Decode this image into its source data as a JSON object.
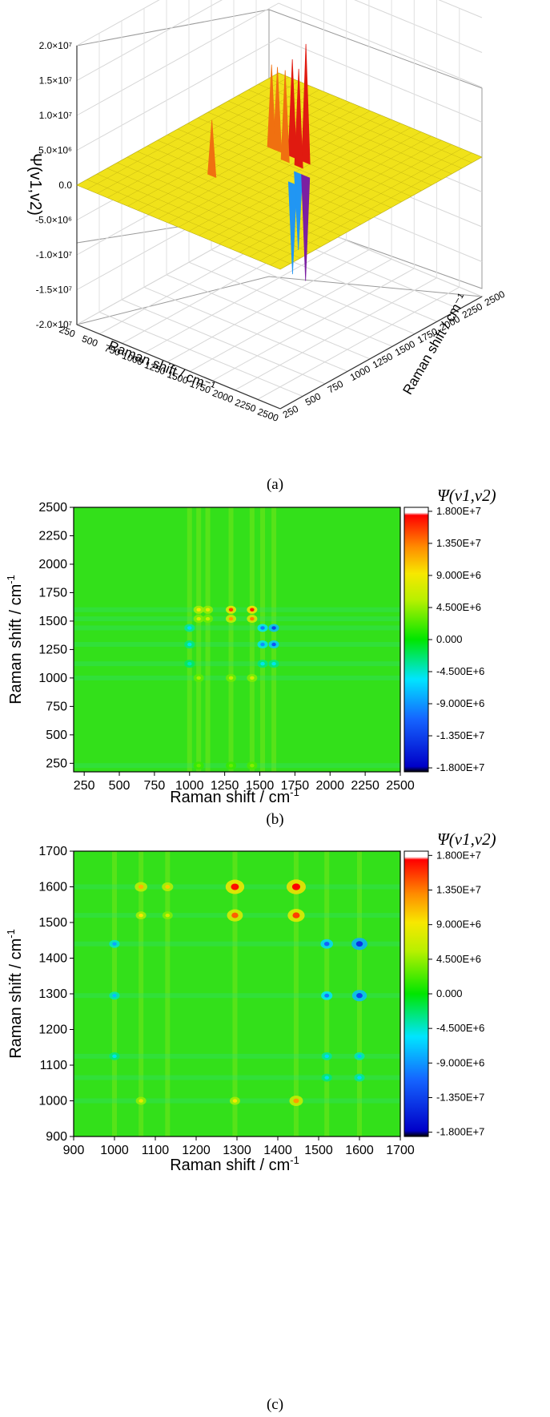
{
  "panels": {
    "a": {
      "caption": "(a)",
      "z_axis_label": "Ψ(v1,v2)",
      "x_axis_label": "Raman shift / cm⁻¹",
      "y_axis_label": "Raman shift / cm⁻¹",
      "z_ticks": [
        "2.0×10⁷",
        "1.5×10⁷",
        "1.0×10⁷",
        "5.0×10⁶",
        "0.0",
        "-5.0×10⁶",
        "-1.0×10⁷",
        "-1.5×10⁷",
        "-2.0×10⁷"
      ],
      "x_ticks": [
        "250",
        "500",
        "750",
        "1000",
        "1250",
        "1500",
        "1750",
        "2000",
        "2250",
        "2500"
      ],
      "y_ticks": [
        "250",
        "500",
        "750",
        "1000",
        "1250",
        "1500",
        "1750",
        "2000",
        "2250",
        "2500"
      ]
    },
    "b": {
      "caption": "(b)",
      "colorbar_title": "Ψ(v1,v2)",
      "x_axis_label": "Raman shift / cm",
      "y_axis_label": "Raman shift / cm",
      "axis_exponent": "-1",
      "x_ticks": [
        "250",
        "500",
        "750",
        "1000",
        "1250",
        "1500",
        "1750",
        "2000",
        "2250",
        "2500"
      ],
      "y_ticks": [
        "2500",
        "2250",
        "2000",
        "1750",
        "1500",
        "1250",
        "1000",
        "750",
        "500",
        "250"
      ],
      "colorbar_ticks": [
        "1.800E+7",
        "1.350E+7",
        "9.000E+6",
        "4.500E+6",
        "0.000",
        "-4.500E+6",
        "-9.000E+6",
        "-1.350E+7",
        "-1.800E+7"
      ]
    },
    "c": {
      "caption": "(c)",
      "colorbar_title": "Ψ(v1,v2)",
      "x_axis_label": "Raman shift / cm",
      "y_axis_label": "Raman shift / cm",
      "axis_exponent": "-1",
      "x_ticks": [
        "900",
        "1000",
        "1100",
        "1200",
        "1300",
        "1400",
        "1500",
        "1600",
        "1700"
      ],
      "y_ticks": [
        "1700",
        "1600",
        "1500",
        "1400",
        "1300",
        "1200",
        "1100",
        "1000",
        "900"
      ],
      "colorbar_ticks": [
        "1.800E+7",
        "1.350E+7",
        "9.000E+6",
        "4.500E+6",
        "0.000",
        "-4.500E+6",
        "-9.000E+6",
        "-1.350E+7",
        "-1.800E+7"
      ]
    }
  },
  "chart_data": [
    {
      "type": "surface3d",
      "panel": "a",
      "x_range": [
        250,
        2500
      ],
      "y_range": [
        250,
        2500
      ],
      "z_range": [
        -20000000,
        20000000
      ],
      "colormap": [
        "#7b1fa2",
        "#2196f3",
        "#69e070",
        "#f4f000",
        "#ff8c00",
        "#e01010"
      ],
      "peaks": [
        {
          "x": 1065,
          "y": 1600,
          "z": 12000000
        },
        {
          "x": 1130,
          "y": 1600,
          "z": 12000000
        },
        {
          "x": 1295,
          "y": 1600,
          "z": 14000000
        },
        {
          "x": 1445,
          "y": 1600,
          "z": 17000000
        },
        {
          "x": 1295,
          "y": 1520,
          "z": 13000000
        },
        {
          "x": 1445,
          "y": 1520,
          "z": 14000000
        },
        {
          "x": 1000,
          "y": 1000,
          "z": 8000000
        },
        {
          "x": 1520,
          "y": 1440,
          "z": -11000000
        },
        {
          "x": 1600,
          "y": 1440,
          "z": -15000000
        },
        {
          "x": 1600,
          "y": 1295,
          "z": -13000000
        }
      ]
    },
    {
      "type": "heatmap",
      "panel": "b",
      "xlim": [
        175,
        2500
      ],
      "ylim": [
        175,
        2500
      ],
      "zlim": [
        -18000000,
        18000000
      ],
      "grid": false,
      "colormap": [
        "#000000",
        "#1010ff",
        "#00e6ff",
        "#00e600",
        "#f0f000",
        "#ff7000",
        "#ff0000",
        "#ffffff"
      ],
      "peaks": [
        {
          "x": 1065,
          "y": 1600,
          "z": 9000000
        },
        {
          "x": 1130,
          "y": 1600,
          "z": 8000000
        },
        {
          "x": 1295,
          "y": 1600,
          "z": 15000000
        },
        {
          "x": 1445,
          "y": 1600,
          "z": 16000000
        },
        {
          "x": 1065,
          "y": 1520,
          "z": 7000000
        },
        {
          "x": 1130,
          "y": 1520,
          "z": 6000000
        },
        {
          "x": 1295,
          "y": 1520,
          "z": 12000000
        },
        {
          "x": 1445,
          "y": 1520,
          "z": 13000000
        },
        {
          "x": 1000,
          "y": 1440,
          "z": -6000000
        },
        {
          "x": 1520,
          "y": 1440,
          "z": -10000000
        },
        {
          "x": 1600,
          "y": 1440,
          "z": -13000000
        },
        {
          "x": 1000,
          "y": 1295,
          "z": -5000000
        },
        {
          "x": 1520,
          "y": 1295,
          "z": -9000000
        },
        {
          "x": 1600,
          "y": 1295,
          "z": -12000000
        },
        {
          "x": 1065,
          "y": 1000,
          "z": 5000000
        },
        {
          "x": 1295,
          "y": 1000,
          "z": 6000000
        },
        {
          "x": 1445,
          "y": 1000,
          "z": 7000000
        },
        {
          "x": 1000,
          "y": 1125,
          "z": -4000000
        },
        {
          "x": 1520,
          "y": 1125,
          "z": -5000000
        },
        {
          "x": 1600,
          "y": 1125,
          "z": -5000000
        },
        {
          "x": 1065,
          "y": 230,
          "z": 3000000
        },
        {
          "x": 1295,
          "y": 230,
          "z": 3000000
        },
        {
          "x": 1445,
          "y": 230,
          "z": 4000000
        }
      ]
    },
    {
      "type": "heatmap",
      "panel": "c",
      "xlim": [
        900,
        1700
      ],
      "ylim": [
        900,
        1700
      ],
      "zlim": [
        -18000000,
        18000000
      ],
      "grid": false,
      "colormap": [
        "#000000",
        "#1010ff",
        "#00e6ff",
        "#00e600",
        "#f0f000",
        "#ff7000",
        "#ff0000",
        "#ffffff"
      ],
      "peaks": [
        {
          "x": 1065,
          "y": 1600,
          "z": 11000000
        },
        {
          "x": 1130,
          "y": 1600,
          "z": 10000000
        },
        {
          "x": 1295,
          "y": 1600,
          "z": 16500000
        },
        {
          "x": 1445,
          "y": 1600,
          "z": 17000000
        },
        {
          "x": 1065,
          "y": 1520,
          "z": 9000000
        },
        {
          "x": 1130,
          "y": 1520,
          "z": 7000000
        },
        {
          "x": 1295,
          "y": 1520,
          "z": 14000000
        },
        {
          "x": 1445,
          "y": 1520,
          "z": 15000000
        },
        {
          "x": 1000,
          "y": 1440,
          "z": -8000000
        },
        {
          "x": 1520,
          "y": 1440,
          "z": -11000000
        },
        {
          "x": 1600,
          "y": 1440,
          "z": -14000000
        },
        {
          "x": 1000,
          "y": 1295,
          "z": -7000000
        },
        {
          "x": 1520,
          "y": 1295,
          "z": -10000000
        },
        {
          "x": 1600,
          "y": 1295,
          "z": -13000000
        },
        {
          "x": 1065,
          "y": 1000,
          "z": 8000000
        },
        {
          "x": 1295,
          "y": 1000,
          "z": 9000000
        },
        {
          "x": 1445,
          "y": 1000,
          "z": 12000000
        },
        {
          "x": 1000,
          "y": 1125,
          "z": -5000000
        },
        {
          "x": 1520,
          "y": 1125,
          "z": -6000000
        },
        {
          "x": 1600,
          "y": 1125,
          "z": -7000000
        },
        {
          "x": 1520,
          "y": 1065,
          "z": -5000000
        },
        {
          "x": 1600,
          "y": 1065,
          "z": -6000000
        }
      ]
    }
  ]
}
